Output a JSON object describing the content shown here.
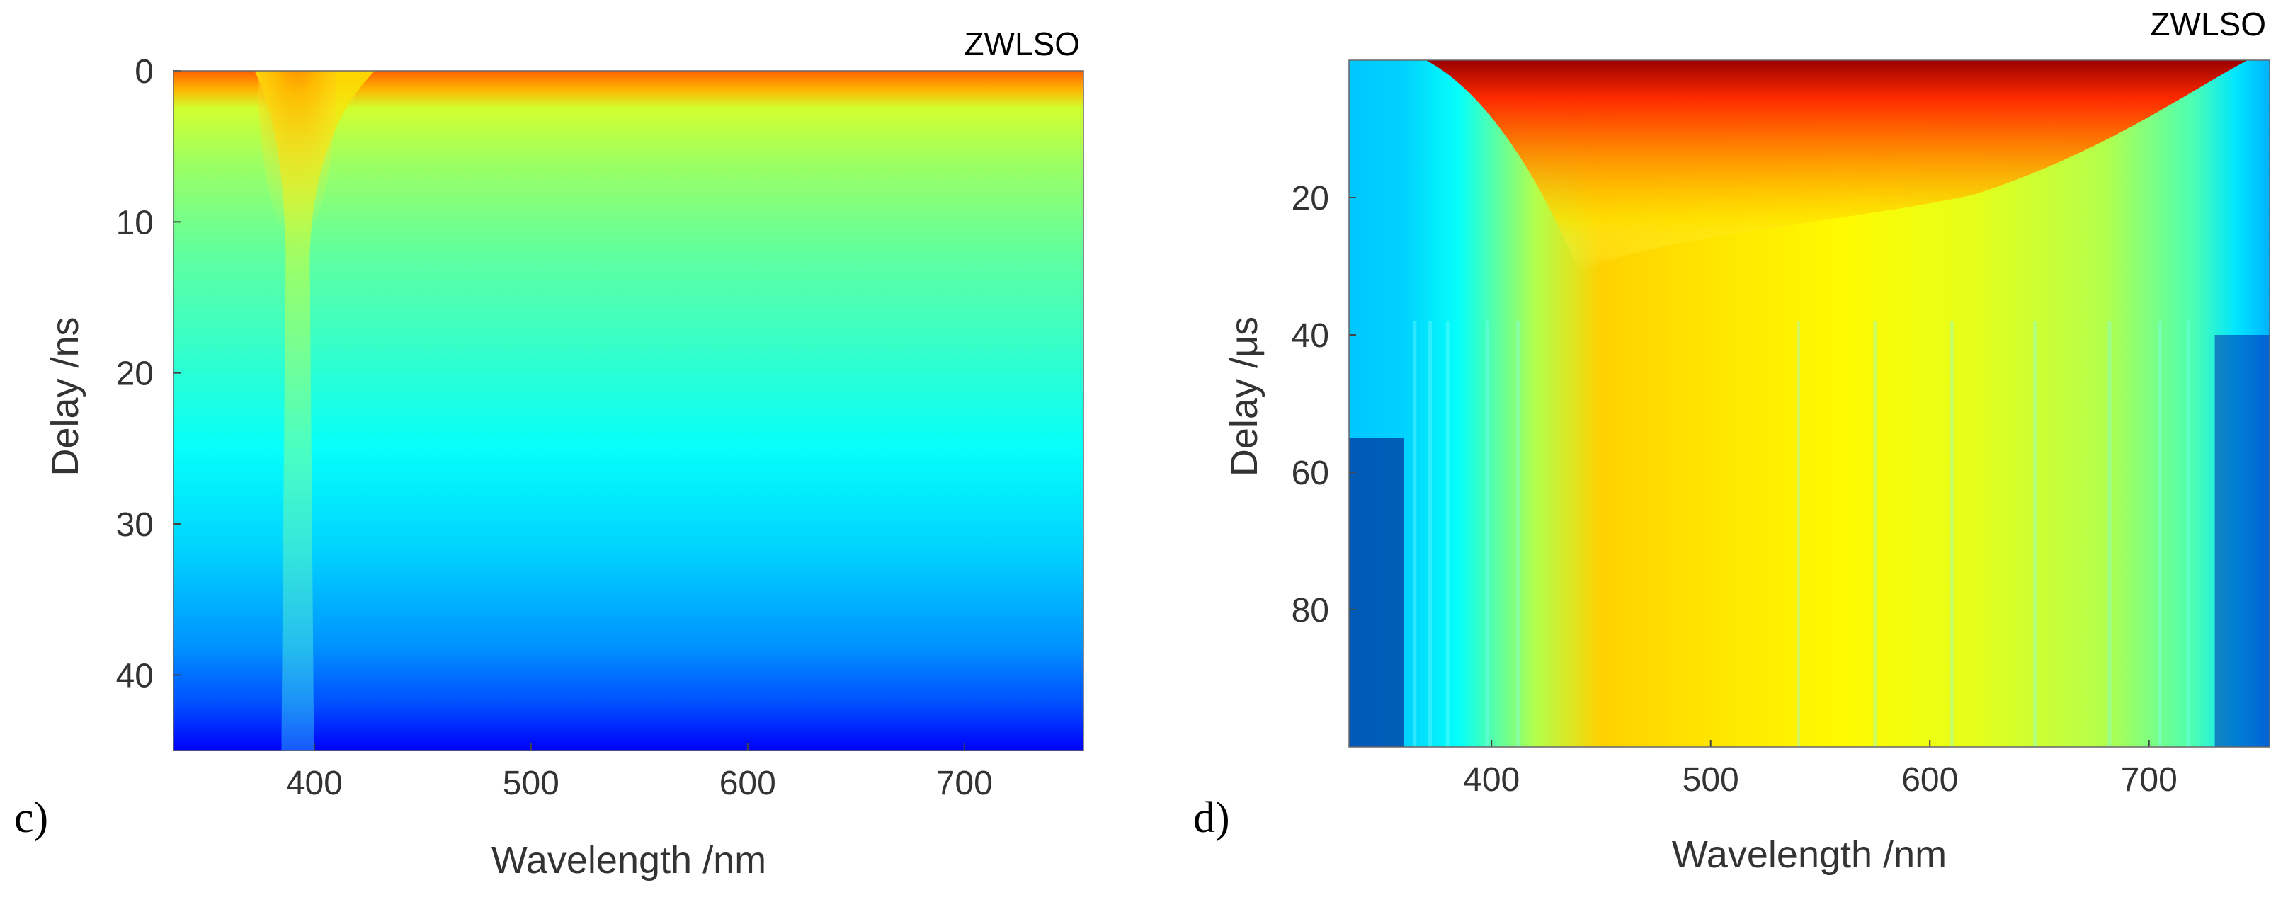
{
  "chart_data": [
    {
      "type": "heatmap",
      "panel_label": "c)",
      "title": "ZWLSO",
      "xlabel": "Wavelength /nm",
      "ylabel": "Delay /ns",
      "xlim": [
        335,
        755
      ],
      "ylim": [
        0,
        45
      ],
      "y_inverted": true,
      "x_ticks": [
        400,
        500,
        600,
        700
      ],
      "y_ticks": [
        0,
        10,
        20,
        30,
        40
      ],
      "colormap": "jet",
      "bands": [
        {
          "delay": 0,
          "intensity": 0.78
        },
        {
          "delay": 1.2,
          "intensity": 0.7
        },
        {
          "delay": 2.5,
          "intensity": 0.58
        },
        {
          "delay": 6,
          "intensity": 0.53
        },
        {
          "delay": 12,
          "intensity": 0.47
        },
        {
          "delay": 18,
          "intensity": 0.43
        },
        {
          "delay": 25,
          "intensity": 0.38
        },
        {
          "delay": 32,
          "intensity": 0.33
        },
        {
          "delay": 38,
          "intensity": 0.27
        },
        {
          "delay": 42,
          "intensity": 0.2
        },
        {
          "delay": 45,
          "intensity": 0.12
        }
      ],
      "peak": {
        "wavelength": 392,
        "delay": 1,
        "intensity": 1.0
      }
    },
    {
      "type": "heatmap",
      "panel_label": "d)",
      "title": "ZWLSO",
      "xlabel": "Wavelength /nm",
      "ylabel": "Delay /μs",
      "xlim": [
        335,
        755
      ],
      "ylim": [
        0,
        100
      ],
      "y_inverted": true,
      "x_ticks": [
        400,
        500,
        600,
        700
      ],
      "y_ticks": [
        20,
        40,
        60,
        80
      ],
      "colormap": "jet",
      "spectrum_profile": [
        {
          "wavelength": 335,
          "intensity": 0.32
        },
        {
          "wavelength": 360,
          "intensity": 0.33
        },
        {
          "wavelength": 385,
          "intensity": 0.38
        },
        {
          "wavelength": 420,
          "intensity": 0.55
        },
        {
          "wavelength": 450,
          "intensity": 0.67
        },
        {
          "wavelength": 500,
          "intensity": 0.65
        },
        {
          "wavelength": 560,
          "intensity": 0.63
        },
        {
          "wavelength": 620,
          "intensity": 0.6
        },
        {
          "wavelength": 680,
          "intensity": 0.55
        },
        {
          "wavelength": 720,
          "intensity": 0.45
        },
        {
          "wavelength": 740,
          "intensity": 0.35
        },
        {
          "wavelength": 755,
          "intensity": 0.3
        }
      ],
      "peak": {
        "wavelength": 500,
        "delay": 2,
        "intensity": 1.0
      }
    }
  ]
}
